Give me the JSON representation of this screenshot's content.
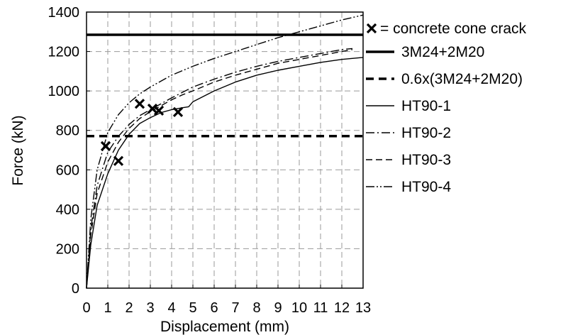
{
  "chart_data": {
    "type": "line",
    "title": "",
    "xlabel": "Displacement (mm)",
    "ylabel": "Force (kN)",
    "xlim": [
      0,
      13
    ],
    "ylim": [
      0,
      1400
    ],
    "xticks": [
      "0",
      "1",
      "2",
      "3",
      "4",
      "5",
      "6",
      "7",
      "8",
      "9",
      "10",
      "11",
      "12",
      "13"
    ],
    "yticks": [
      "0",
      "200",
      "400",
      "600",
      "800",
      "1000",
      "1200",
      "1400"
    ],
    "grid": true,
    "legend_position": "right",
    "reference_lines": [
      {
        "name": "3M24+2M20",
        "y": 1285,
        "style": "thick-solid"
      },
      {
        "name": "0.6x(3M24+2M20)",
        "y": 771,
        "style": "thick-dashed"
      }
    ],
    "series": [
      {
        "name": "HT90-1",
        "style": "solid",
        "x": [
          0,
          0.2,
          0.5,
          1.0,
          1.5,
          2.0,
          2.5,
          3.0,
          3.5,
          4.0,
          4.5,
          4.8,
          5.0,
          6.0,
          7.0,
          8.0,
          9.0,
          10.0,
          11.0,
          12.0,
          13.0
        ],
        "y": [
          0,
          220,
          420,
          580,
          700,
          780,
          835,
          865,
          890,
          905,
          915,
          920,
          945,
          1000,
          1045,
          1080,
          1105,
          1125,
          1145,
          1160,
          1170
        ]
      },
      {
        "name": "HT90-2",
        "style": "dash-dot",
        "x": [
          0,
          0.2,
          0.5,
          1.0,
          1.5,
          2.0,
          2.5,
          3.0,
          3.5,
          4.0,
          5.0,
          6.0,
          7.0,
          8.0,
          9.0,
          10.0,
          11.0,
          12.0,
          12.5
        ],
        "y": [
          0,
          300,
          520,
          690,
          770,
          830,
          875,
          905,
          935,
          965,
          1020,
          1060,
          1095,
          1125,
          1150,
          1170,
          1190,
          1210,
          1215
        ]
      },
      {
        "name": "HT90-3",
        "style": "dashed",
        "x": [
          0,
          0.2,
          0.5,
          1.0,
          1.5,
          2.0,
          2.5,
          3.0,
          3.5,
          4.0,
          4.5,
          5.0,
          6.0,
          7.0,
          8.0,
          9.0,
          10.0,
          11.0,
          12.0,
          12.5
        ],
        "y": [
          0,
          270,
          480,
          640,
          740,
          810,
          860,
          895,
          925,
          955,
          980,
          1000,
          1045,
          1080,
          1110,
          1140,
          1160,
          1180,
          1200,
          1210
        ]
      },
      {
        "name": "HT90-4",
        "style": "dash-dot-dot",
        "x": [
          0,
          0.2,
          0.5,
          1.0,
          1.5,
          2.0,
          2.5,
          3.0,
          4.0,
          5.0,
          6.0,
          7.0,
          8.0,
          9.0,
          10.0,
          11.0,
          12.0,
          13.0
        ],
        "y": [
          0,
          350,
          600,
          790,
          880,
          940,
          985,
          1020,
          1080,
          1125,
          1165,
          1200,
          1235,
          1270,
          1300,
          1330,
          1360,
          1385
        ]
      }
    ],
    "crack_markers": {
      "label": "= concrete cone crack",
      "points": [
        {
          "x": 0.9,
          "y": 720
        },
        {
          "x": 1.5,
          "y": 645
        },
        {
          "x": 2.5,
          "y": 935
        },
        {
          "x": 3.1,
          "y": 910
        },
        {
          "x": 3.4,
          "y": 900
        },
        {
          "x": 4.3,
          "y": 893
        }
      ]
    }
  }
}
